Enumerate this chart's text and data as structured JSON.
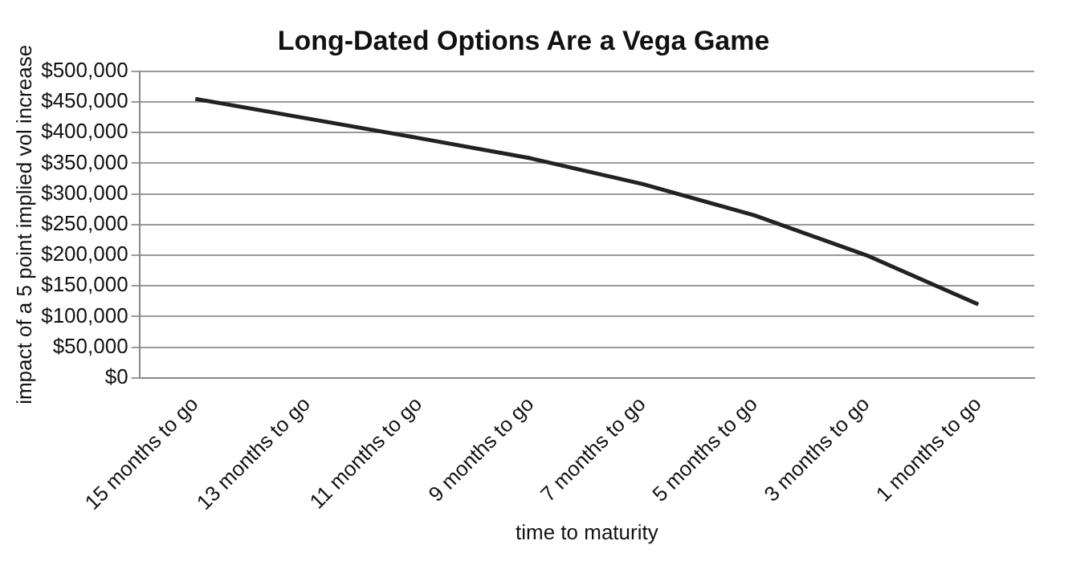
{
  "chart_data": {
    "type": "line",
    "title": "Long-Dated Options Are a Vega Game",
    "xlabel": "time to maturity",
    "ylabel": "impact of a 5 point implied vol increase",
    "categories": [
      "15 months to go",
      "13 months to go",
      "11 months to go",
      "9 months to go",
      "7 months to go",
      "5 months to go",
      "3 months to go",
      "1 months to go"
    ],
    "series": [
      {
        "color": "#222222",
        "values": [
          455000,
          423000,
          391000,
          358000,
          316000,
          265000,
          200000,
          120000
        ]
      }
    ],
    "ylim": [
      0,
      500000
    ],
    "yticks": [
      {
        "value": 0,
        "label": "$0"
      },
      {
        "value": 50000,
        "label": "$50,000"
      },
      {
        "value": 100000,
        "label": "$100,000"
      },
      {
        "value": 150000,
        "label": "$150,000"
      },
      {
        "value": 200000,
        "label": "$200,000"
      },
      {
        "value": 250000,
        "label": "$250,000"
      },
      {
        "value": 300000,
        "label": "$300,000"
      },
      {
        "value": 350000,
        "label": "$350,000"
      },
      {
        "value": 400000,
        "label": "$400,000"
      },
      {
        "value": 450000,
        "label": "$450,000"
      },
      {
        "value": 500000,
        "label": "$500,000"
      }
    ],
    "grid": "y",
    "marker": "none",
    "line_style": "solid",
    "legend": false
  }
}
